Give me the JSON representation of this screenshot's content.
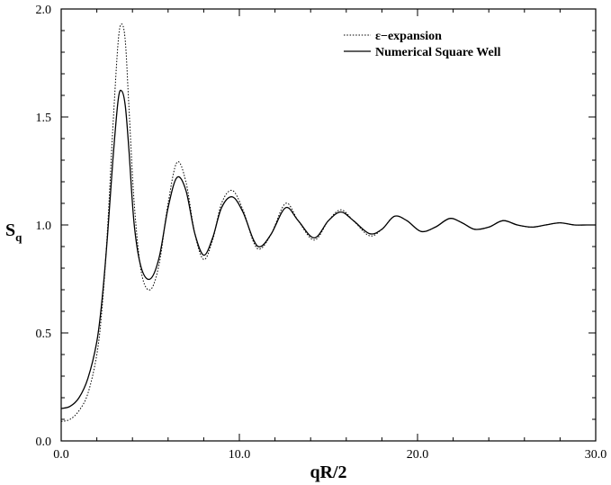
{
  "chart_data": {
    "type": "line",
    "title": "",
    "xlabel": "qR/2",
    "ylabel": "S",
    "ylabel_subscript": "q",
    "xlim": [
      0,
      30
    ],
    "ylim": [
      0,
      2
    ],
    "x_ticks": [
      0,
      10,
      20,
      30
    ],
    "x_tick_labels": [
      "0.0",
      "10.0",
      "20.0",
      "30.0"
    ],
    "y_ticks": [
      0,
      0.5,
      1.0,
      1.5,
      2.0
    ],
    "y_tick_labels": [
      "0.0",
      "0.5",
      "1.0",
      "1.5",
      "2.0"
    ],
    "grid": false,
    "legend_position": "top-right",
    "series": [
      {
        "name": "ε−expansion",
        "style": "dotted",
        "x": [
          0,
          0.5,
          1,
          1.5,
          2,
          2.3,
          2.6,
          2.9,
          3.2,
          3.4,
          3.6,
          3.8,
          4.1,
          4.5,
          5.0,
          5.5,
          6.0,
          6.5,
          7.0,
          7.5,
          8.0,
          8.5,
          9.0,
          9.6,
          10.2,
          10.8,
          11.2,
          11.8,
          12.6,
          13.3,
          14.2,
          15.0,
          15.7,
          16.4,
          17.3,
          18.0,
          18.7,
          19.4,
          20.2,
          21.0,
          21.8,
          22.5,
          23.2,
          24.0,
          24.8,
          25.6,
          26.4,
          27.2,
          28.0,
          28.8,
          29.5,
          30.0
        ],
        "y": [
          0.09,
          0.1,
          0.14,
          0.22,
          0.4,
          0.62,
          0.98,
          1.45,
          1.85,
          1.93,
          1.85,
          1.55,
          1.1,
          0.78,
          0.7,
          0.82,
          1.1,
          1.29,
          1.2,
          0.96,
          0.84,
          0.93,
          1.1,
          1.16,
          1.07,
          0.92,
          0.89,
          0.96,
          1.1,
          1.02,
          0.93,
          1.02,
          1.07,
          1.02,
          0.95,
          0.98,
          1.04,
          1.02,
          0.97,
          0.99,
          1.03,
          1.01,
          0.98,
          0.99,
          1.02,
          1.0,
          0.99,
          1.0,
          1.01,
          1.0,
          1.0,
          1.0
        ]
      },
      {
        "name": "Numerical Square Well",
        "style": "solid",
        "x": [
          0,
          0.5,
          1,
          1.5,
          2,
          2.3,
          2.6,
          2.9,
          3.2,
          3.4,
          3.6,
          3.8,
          4.1,
          4.5,
          5.0,
          5.5,
          6.0,
          6.5,
          7.0,
          7.5,
          8.0,
          8.5,
          9.0,
          9.6,
          10.2,
          10.8,
          11.2,
          11.8,
          12.6,
          13.3,
          14.2,
          15.0,
          15.7,
          16.4,
          17.3,
          18.0,
          18.7,
          19.4,
          20.2,
          21.0,
          21.8,
          22.5,
          23.2,
          24.0,
          24.8,
          25.6,
          26.4,
          27.2,
          28.0,
          28.8,
          29.5,
          30.0
        ],
        "y": [
          0.15,
          0.16,
          0.2,
          0.29,
          0.46,
          0.66,
          0.95,
          1.3,
          1.58,
          1.62,
          1.55,
          1.35,
          1.0,
          0.8,
          0.75,
          0.85,
          1.08,
          1.22,
          1.16,
          0.96,
          0.86,
          0.94,
          1.08,
          1.13,
          1.06,
          0.93,
          0.9,
          0.96,
          1.08,
          1.02,
          0.94,
          1.02,
          1.06,
          1.02,
          0.96,
          0.98,
          1.04,
          1.02,
          0.97,
          0.99,
          1.03,
          1.01,
          0.98,
          0.99,
          1.02,
          1.0,
          0.99,
          1.0,
          1.01,
          1.0,
          1.0,
          1.0
        ]
      }
    ]
  }
}
